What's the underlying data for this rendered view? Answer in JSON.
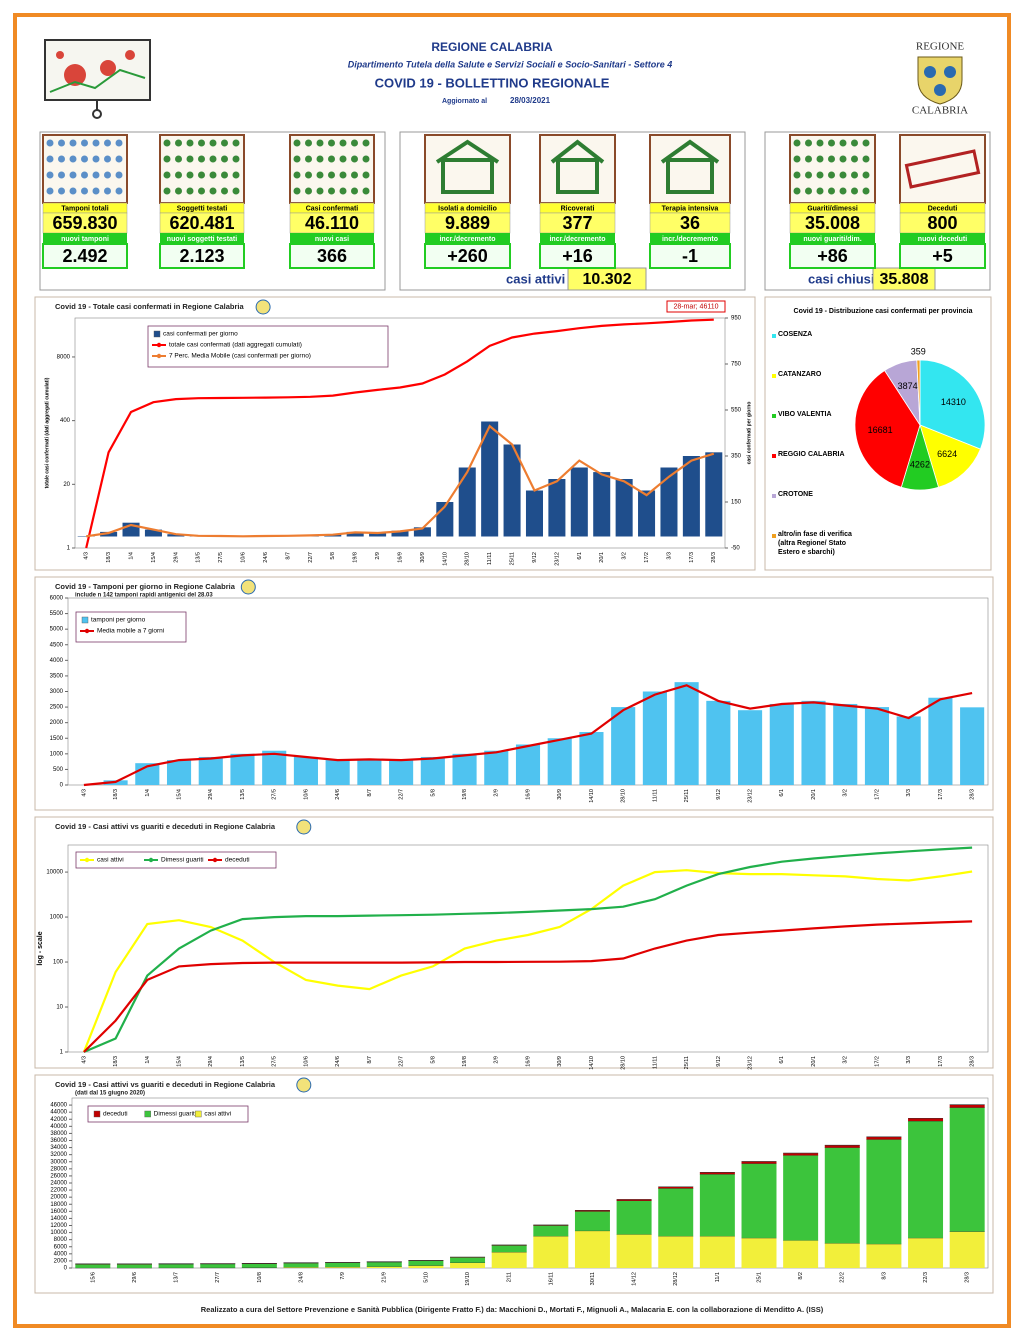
{
  "header": {
    "region": "REGIONE CALABRIA",
    "department": "Dipartimento Tutela della Salute e Servizi Sociali e Socio-Sanitari - Settore 4",
    "title": "COVID 19 - BOLLETTINO REGIONALE",
    "updated_label": "Aggiornato al",
    "date": "28/03/2021",
    "logo_top": "REGIONE",
    "logo_bottom": "CALABRIA"
  },
  "stats": [
    {
      "label": "Tamponi totali",
      "value": "659.830",
      "sub_label": "nuovi tamponi",
      "sub_value": "2.492"
    },
    {
      "label": "Soggetti testati",
      "value": "620.481",
      "sub_label": "nuovi soggetti testati",
      "sub_value": "2.123"
    },
    {
      "label": "Casi confermati",
      "value": "46.110",
      "sub_label": "nuovi casi",
      "sub_value": "366"
    },
    {
      "label": "Isolati a domicilio",
      "value": "9.889",
      "sub_label": "incr./decremento",
      "sub_value": "+260"
    },
    {
      "label": "Ricoverati",
      "value": "377",
      "sub_label": "incr./decremento",
      "sub_value": "+16"
    },
    {
      "label": "Terapia intensiva",
      "value": "36",
      "sub_label": "incr./decremento",
      "sub_value": "-1"
    },
    {
      "label": "Guariti/dimessi",
      "value": "35.008",
      "sub_label": "nuovi guariti/dim.",
      "sub_value": "+86"
    },
    {
      "label": "Deceduti",
      "value": "800",
      "sub_label": "nuovi deceduti",
      "sub_value": "+5"
    }
  ],
  "summary": {
    "active_label": "casi attivi",
    "active_value": "10.302",
    "closed_label": "casi chiusi",
    "closed_value": "35.808"
  },
  "chart_data": [
    {
      "type": "bar",
      "title": "Covid 19 - Totale casi confermati in Regione Calabria",
      "annotation": "28-mar; 46110",
      "categories": [
        "4/3",
        "18/3",
        "1/4",
        "15/4",
        "29/4",
        "13/5",
        "27/5",
        "10/6",
        "24/6",
        "8/7",
        "22/7",
        "5/8",
        "19/8",
        "2/9",
        "16/9",
        "30/9",
        "14/10",
        "28/10",
        "11/11",
        "25/11",
        "9/12",
        "23/12",
        "6/1",
        "20/1",
        "3/2",
        "17/2",
        "3/3",
        "17/3",
        "28/3"
      ],
      "series": [
        {
          "name": "casi confermati per giorno",
          "color": "#1f4e8c",
          "type": "bar",
          "axis": "y2",
          "values": [
            2,
            20,
            60,
            30,
            10,
            3,
            2,
            1,
            2,
            3,
            5,
            10,
            20,
            15,
            25,
            40,
            150,
            300,
            500,
            400,
            200,
            250,
            300,
            280,
            250,
            200,
            300,
            350,
            366
          ]
        },
        {
          "name": "totale casi confermati (dati aggregati cumulati)",
          "color": "#ff0000",
          "type": "line",
          "values": [
            1,
            90,
            600,
            950,
            1100,
            1150,
            1160,
            1170,
            1180,
            1200,
            1230,
            1300,
            1500,
            1700,
            1900,
            2300,
            3500,
            6500,
            13500,
            20000,
            24000,
            27000,
            31000,
            34500,
            37000,
            39000,
            41500,
            44500,
            46110
          ]
        },
        {
          "name": "7 Perc. Media Mobile (casi confermati per giorno)",
          "color": "#ed7d31",
          "type": "line",
          "axis": "y2",
          "values": [
            1,
            15,
            50,
            30,
            10,
            3,
            2,
            1,
            2,
            3,
            5,
            8,
            18,
            15,
            22,
            35,
            130,
            280,
            480,
            400,
            200,
            240,
            330,
            270,
            240,
            180,
            260,
            330,
            360
          ]
        }
      ],
      "log_scale": true,
      "ylim": [
        1,
        50000
      ],
      "yticks": [
        1,
        20,
        400,
        8000
      ],
      "y2lim": [
        -50,
        950
      ],
      "y2ticks": [
        -50,
        150,
        350,
        550,
        750,
        950
      ],
      "ylabel": "totale casi confermati (dati aggregati cumulati)",
      "y2label": "casi confermati per giorno"
    },
    {
      "type": "bar",
      "title": "Covid 19 - Tamponi per giorno in Regione Calabria",
      "subtitle": "include n 142  tamponi rapidi antigenici del 28.03",
      "categories": [
        "4/3",
        "18/3",
        "1/4",
        "15/4",
        "29/4",
        "13/5",
        "27/5",
        "10/6",
        "24/6",
        "8/7",
        "22/7",
        "5/8",
        "19/8",
        "2/9",
        "16/9",
        "30/9",
        "14/10",
        "28/10",
        "11/11",
        "25/11",
        "9/12",
        "23/12",
        "6/1",
        "20/1",
        "3/2",
        "17/2",
        "3/3",
        "17/3",
        "28/3"
      ],
      "series": [
        {
          "name": "tamponi per giorno",
          "color": "#4fc3f0",
          "type": "bar",
          "values": [
            0,
            150,
            700,
            800,
            900,
            1000,
            1100,
            900,
            800,
            850,
            800,
            900,
            1000,
            1100,
            1300,
            1500,
            1700,
            2500,
            3000,
            3300,
            2700,
            2400,
            2600,
            2700,
            2600,
            2500,
            2200,
            2800,
            2492
          ]
        },
        {
          "name": "Media mobile a 7 giorni",
          "color": "#e00000",
          "type": "line",
          "values": [
            0,
            100,
            600,
            800,
            850,
            950,
            1000,
            900,
            800,
            820,
            800,
            850,
            950,
            1050,
            1250,
            1450,
            1650,
            2400,
            2900,
            3200,
            2700,
            2450,
            2600,
            2650,
            2550,
            2450,
            2150,
            2750,
            2950
          ]
        }
      ],
      "ylim": [
        0,
        6000
      ],
      "yticks": [
        0,
        500,
        1000,
        1500,
        2000,
        2500,
        3000,
        3500,
        4000,
        4500,
        5000,
        5500,
        6000
      ]
    },
    {
      "type": "line",
      "title": "Covid 19 - Casi attivi vs guariti e deceduti in Regione Calabria",
      "ylabel": "log - scale",
      "categories": [
        "4/3",
        "18/3",
        "1/4",
        "15/4",
        "29/4",
        "13/5",
        "27/5",
        "10/6",
        "24/6",
        "8/7",
        "22/7",
        "5/8",
        "19/8",
        "2/9",
        "16/9",
        "30/9",
        "14/10",
        "28/10",
        "11/11",
        "25/11",
        "9/12",
        "23/12",
        "6/1",
        "20/1",
        "3/2",
        "17/2",
        "3/3",
        "17/3",
        "28/3"
      ],
      "series": [
        {
          "name": "casi attivi",
          "color": "#ffff00",
          "values": [
            1,
            60,
            700,
            850,
            600,
            300,
            100,
            40,
            30,
            25,
            50,
            80,
            200,
            300,
            400,
            600,
            1500,
            5000,
            10000,
            11000,
            9500,
            9000,
            9000,
            8500,
            8000,
            7000,
            6500,
            8000,
            10302
          ]
        },
        {
          "name": "Dimessi guariti",
          "color": "#21b04b",
          "values": [
            1,
            2,
            50,
            200,
            500,
            900,
            1000,
            1050,
            1050,
            1080,
            1100,
            1130,
            1180,
            1230,
            1300,
            1400,
            1500,
            1700,
            2500,
            5000,
            9000,
            13000,
            17000,
            20000,
            23000,
            26000,
            29000,
            32000,
            35008
          ]
        },
        {
          "name": "deceduti",
          "color": "#e00000",
          "values": [
            1,
            5,
            40,
            80,
            90,
            95,
            97,
            97,
            97,
            97,
            97,
            98,
            100,
            100,
            101,
            102,
            105,
            120,
            200,
            300,
            400,
            450,
            500,
            560,
            620,
            680,
            720,
            760,
            800
          ]
        }
      ],
      "log_scale": true,
      "ylim": [
        1,
        40000
      ],
      "yticks": [
        1,
        10,
        100,
        1000,
        10000
      ]
    },
    {
      "type": "stacked_bar",
      "title": "Covid 19 - Casi attivi vs guariti e deceduti in Regione Calabria",
      "subtitle": "(dati dal 15 giugno 2020)",
      "categories": [
        "15/6",
        "29/6",
        "13/7",
        "27/7",
        "10/8",
        "24/8",
        "7/9",
        "21/9",
        "5/10",
        "19/10",
        "2/11",
        "16/11",
        "30/11",
        "14/12",
        "28/12",
        "11/1",
        "25/1",
        "8/2",
        "22/2",
        "8/3",
        "22/3",
        "28/3"
      ],
      "series": [
        {
          "name": "deceduti",
          "color": "#c00000",
          "values": [
            97,
            97,
            97,
            97,
            97,
            98,
            100,
            101,
            102,
            105,
            115,
            170,
            280,
            380,
            440,
            510,
            580,
            640,
            690,
            730,
            780,
            800
          ]
        },
        {
          "name": "Dimessi guariti",
          "color": "#3cc43c",
          "values": [
            1050,
            1050,
            1080,
            1100,
            1120,
            1170,
            1220,
            1290,
            1380,
            1500,
            1900,
            3000,
            5500,
            9500,
            13500,
            17500,
            21000,
            24000,
            27000,
            29500,
            33000,
            35008
          ]
        },
        {
          "name": "casi attivi",
          "color": "#f2ef3a",
          "values": [
            30,
            25,
            40,
            60,
            100,
            220,
            300,
            400,
            700,
            1500,
            4500,
            9000,
            10500,
            9500,
            9000,
            9000,
            8500,
            7800,
            7000,
            6800,
            8500,
            10302
          ]
        }
      ],
      "ylim": [
        0,
        48000
      ],
      "yticks": [
        0,
        2000,
        4000,
        6000,
        8000,
        10000,
        12000,
        14000,
        16000,
        18000,
        20000,
        22000,
        24000,
        26000,
        28000,
        30000,
        32000,
        34000,
        36000,
        38000,
        40000,
        42000,
        44000,
        46000
      ]
    },
    {
      "type": "pie",
      "title": "Covid 19 - Distribuzione casi confermati per provincia",
      "categories": [
        "COSENZA",
        "CATANZARO",
        "VIBO VALENTIA",
        "REGGIO CALABRIA",
        "CROTONE",
        "altro/in fase di verifica (altra Regione/ Stato Estero e sbarchi)"
      ],
      "values": [
        14310,
        6624,
        4262,
        16681,
        3874,
        359
      ],
      "colors": [
        "#33e6f0",
        "#ffff00",
        "#22cc22",
        "#ff0000",
        "#b8a6d6",
        "#f0a020"
      ]
    }
  ],
  "footer": "Realizzato a cura del Settore Prevenzione e Sanità Pubblica (Dirigente Fratto F.) da:  Macchioni D., Mortati F., Mignuoli A., Malacaria E. con la collaborazione di Menditto A. (ISS)"
}
